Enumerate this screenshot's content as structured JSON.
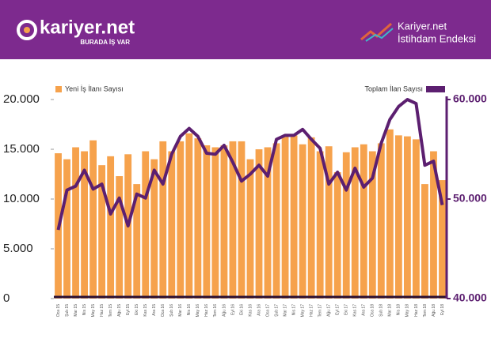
{
  "header": {
    "brand": "kariyer.net",
    "slogan": "BURADA İŞ VAR",
    "index_brand": "Kariyer.net",
    "index_name": "İstihdam Endeksi"
  },
  "chart_data": {
    "type": "bar_line",
    "categories": [
      "Oca 15",
      "Şub 15",
      "Mar 15",
      "Nis 15",
      "May 15",
      "Haz 15",
      "Tem 15",
      "Ağu 15",
      "Eyl 15",
      "Eki 15",
      "Kas 15",
      "Ara 15",
      "Oca 16",
      "Şub 16",
      "Mar 16",
      "Nis 16",
      "May 16",
      "Haz 16",
      "Tem 16",
      "Ağu 16",
      "Eyl 16",
      "Eki 16",
      "Kas 16",
      "Ara 16",
      "Oca 17",
      "Şub 17",
      "Mar 17",
      "Nis 17",
      "May 17",
      "Haz 17",
      "Tem 17",
      "Ağu 17",
      "Eyl 17",
      "Eki 17",
      "Kas 17",
      "Ara 17",
      "Oca 18",
      "Şub 18",
      "Mar 18",
      "Nis 18",
      "May 18",
      "Haz 18",
      "Tem 18",
      "Ağu 18",
      "Eyl 18"
    ],
    "series": [
      {
        "name": "Yeni İş İlanı Sayısı",
        "color": "#f6a24c",
        "kind": "bar",
        "values": [
          14600,
          14000,
          15200,
          14800,
          15900,
          13400,
          14300,
          12300,
          14500,
          11500,
          14800,
          14000,
          15800,
          14800,
          15800,
          16600,
          16100,
          15400,
          15200,
          15400,
          15800,
          15800,
          14000,
          15000,
          15200,
          15600,
          16300,
          16400,
          15500,
          16200,
          14800,
          15300,
          12700,
          14700,
          15200,
          15500,
          14800,
          15600,
          17000,
          16400,
          16300,
          16000,
          11500,
          14800,
          11900
        ]
      },
      {
        "name": "Toplam İlan Sayısı",
        "color": "#5c1f70",
        "kind": "line",
        "axis": "y2",
        "values": [
          46900,
          50900,
          51300,
          52900,
          51000,
          51500,
          48500,
          50100,
          47300,
          50500,
          50100,
          52900,
          51500,
          54500,
          56300,
          57100,
          56300,
          54600,
          54500,
          55400,
          53700,
          51800,
          52500,
          53400,
          52300,
          56000,
          56400,
          56400,
          57000,
          56000,
          55100,
          51500,
          52700,
          50900,
          53100,
          51200,
          52100,
          55600,
          58000,
          59300,
          60000,
          59600,
          53400,
          53800,
          49400
        ]
      }
    ],
    "ylim": [
      0,
      20000
    ],
    "yticks": [
      {
        "value": 0,
        "label": "0"
      },
      {
        "value": 5000,
        "label": "5.000"
      },
      {
        "value": 10000,
        "label": "10.000"
      },
      {
        "value": 15000,
        "label": "15.000"
      },
      {
        "value": 20000,
        "label": "20.000"
      }
    ],
    "y2lim": [
      40000,
      60000
    ],
    "y2ticks": [
      {
        "value": 40000,
        "label": "40.000"
      },
      {
        "value": 50000,
        "label": "50.000"
      },
      {
        "value": 60000,
        "label": "60.000"
      }
    ]
  }
}
